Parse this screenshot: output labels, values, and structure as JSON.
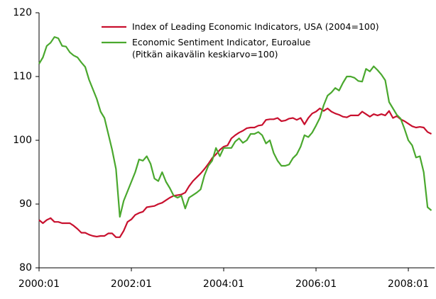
{
  "chart_data": {
    "type": "line",
    "categories": [
      "2000:01",
      null,
      null,
      null,
      null,
      null,
      null,
      null,
      null,
      null,
      null,
      null,
      null,
      null,
      null,
      null,
      null,
      null,
      null,
      null,
      null,
      null,
      null,
      null,
      "2002:01",
      null,
      null,
      null,
      null,
      null,
      null,
      null,
      null,
      null,
      null,
      null,
      null,
      null,
      null,
      null,
      null,
      null,
      null,
      null,
      null,
      null,
      null,
      null,
      "2004:01",
      null,
      null,
      null,
      null,
      null,
      null,
      null,
      null,
      null,
      null,
      null,
      null,
      null,
      null,
      null,
      null,
      null,
      null,
      null,
      null,
      null,
      null,
      null,
      "2006:01",
      null,
      null,
      null,
      null,
      null,
      null,
      null,
      null,
      null,
      null,
      null,
      null,
      null,
      null,
      null,
      null,
      null,
      null,
      null,
      null,
      null,
      null,
      null,
      "2008:01",
      null,
      null,
      null,
      null,
      null,
      null
    ],
    "series": [
      {
        "name": "Index of Leading Economic Indicators, USA (2004=100)",
        "color": "#c8102e",
        "values": [
          87.5,
          87,
          87.5,
          87.8,
          87.2,
          87.2,
          87,
          87,
          87,
          86.6,
          86.1,
          85.5,
          85.5,
          85.2,
          85,
          84.9,
          85,
          85,
          85.4,
          85.4,
          84.8,
          84.8,
          85.8,
          87.2,
          87.6,
          88.3,
          88.6,
          88.8,
          89.5,
          89.6,
          89.7,
          90,
          90.2,
          90.6,
          91,
          91.3,
          91.4,
          91.5,
          91.8,
          92.8,
          93.6,
          94.2,
          94.8,
          95.5,
          96.3,
          97.2,
          97.8,
          98.5,
          99,
          99.2,
          100.3,
          100.8,
          101.2,
          101.5,
          101.9,
          102,
          102,
          102.3,
          102.4,
          103.2,
          103.3,
          103.3,
          103.5,
          103,
          103.1,
          103.4,
          103.5,
          103.2,
          103.5,
          102.5,
          103.5,
          104.2,
          104.5,
          105,
          104.6,
          105,
          104.5,
          104.2,
          104,
          103.7,
          103.6,
          103.9,
          103.9,
          103.9,
          104.5,
          104.1,
          103.7,
          104.1,
          103.9,
          104.1,
          103.9,
          104.6,
          103.5,
          103.8,
          103.3,
          103,
          102.6,
          102.2,
          102,
          102.1,
          102,
          101.3,
          101
        ]
      },
      {
        "name": "Economic Sentiment Indicator, Euroalue (Pitkän aikavälin keskiarvo=100)",
        "color": "#4aa82e",
        "values": [
          112,
          113,
          114.8,
          115.3,
          116.2,
          116,
          114.8,
          114.7,
          113.8,
          113.3,
          113,
          112.2,
          111.5,
          109.5,
          108,
          106.5,
          104.5,
          103.5,
          101,
          98.5,
          95.5,
          88,
          90.5,
          92,
          93.5,
          95,
          97,
          96.8,
          97.5,
          96.3,
          94,
          93.6,
          95,
          93.5,
          92.5,
          91.3,
          91,
          91.3,
          89.3,
          91,
          91.4,
          91.8,
          92.3,
          94.5,
          96,
          96.8,
          98.8,
          97.5,
          98.8,
          98.8,
          98.8,
          99.8,
          100.3,
          99.6,
          100,
          101,
          101,
          101.3,
          100.8,
          99.5,
          100,
          98,
          96.8,
          96,
          96,
          96.2,
          97.2,
          97.8,
          99,
          100.8,
          100.5,
          101.2,
          102.3,
          103.5,
          105.5,
          107,
          107.5,
          108.2,
          107.8,
          109,
          110,
          110,
          109.8,
          109.3,
          109.2,
          111.2,
          110.8,
          111.6,
          111,
          110.3,
          109.4,
          106,
          105,
          104,
          103.4,
          101.8,
          100,
          99.2,
          97.3,
          97.5,
          95,
          89.5,
          89
        ]
      }
    ],
    "ylim": [
      80,
      120
    ],
    "yticks": [
      80,
      90,
      100,
      110,
      120
    ],
    "grid": false
  }
}
